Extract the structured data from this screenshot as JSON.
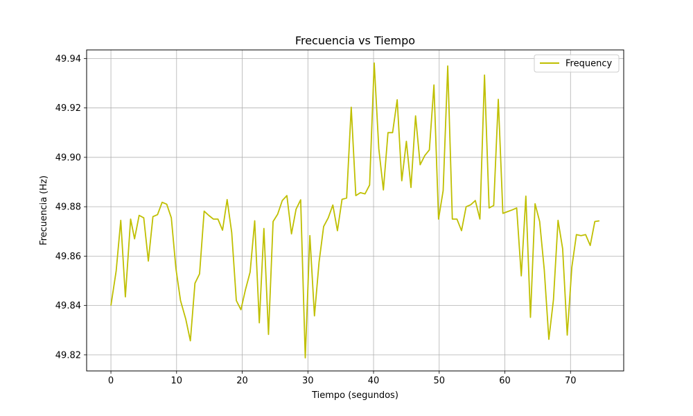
{
  "chart_data": {
    "type": "line",
    "title": "Frecuencia vs Tiempo",
    "xlabel": "Tiempo (segundos)",
    "ylabel": "Frecuencia (Hz)",
    "xlim": [
      -3.7,
      78.1
    ],
    "ylim": [
      49.8135,
      49.9435
    ],
    "xticks": [
      0,
      10,
      20,
      30,
      40,
      50,
      60,
      70
    ],
    "yticks": [
      49.82,
      49.84,
      49.86,
      49.88,
      49.9,
      49.92,
      49.94
    ],
    "ytick_labels": [
      "49.82",
      "49.84",
      "49.86",
      "49.88",
      "49.90",
      "49.92",
      "49.94"
    ],
    "grid": true,
    "legend_position": "top-right",
    "series": [
      {
        "name": "Frequency",
        "color": "#bfbf00",
        "x": [
          0.0,
          0.8,
          1.5,
          2.2,
          3.0,
          3.6,
          4.3,
          5.0,
          5.7,
          6.4,
          7.1,
          7.8,
          8.5,
          9.2,
          9.9,
          10.6,
          11.4,
          12.1,
          12.8,
          13.5,
          14.2,
          14.9,
          15.6,
          16.3,
          17.0,
          17.7,
          18.4,
          19.1,
          19.8,
          20.5,
          21.2,
          21.9,
          22.6,
          23.3,
          24.0,
          24.7,
          25.4,
          26.1,
          26.8,
          27.5,
          28.2,
          28.9,
          29.6,
          30.3,
          31.0,
          31.7,
          32.4,
          33.1,
          33.8,
          34.5,
          35.2,
          35.9,
          36.6,
          37.3,
          38.0,
          38.7,
          39.4,
          40.1,
          40.8,
          41.5,
          42.2,
          42.9,
          43.6,
          44.3,
          45.0,
          45.7,
          46.4,
          47.1,
          47.8,
          48.5,
          49.2,
          49.9,
          50.6,
          51.3,
          52.0,
          52.7,
          53.4,
          54.1,
          54.8,
          55.5,
          56.2,
          56.9,
          57.6,
          58.3,
          59.0,
          59.7,
          60.4,
          61.1,
          61.8,
          62.5,
          63.2,
          63.9,
          64.6,
          65.3,
          66.0,
          66.7,
          67.4,
          68.1,
          68.8,
          69.5,
          70.2,
          70.9,
          71.6,
          72.3,
          73.0,
          73.7,
          74.4
        ],
        "y": [
          49.84,
          49.854,
          49.8745,
          49.8435,
          49.875,
          49.867,
          49.8765,
          49.8755,
          49.858,
          49.876,
          49.8768,
          49.8818,
          49.881,
          49.8755,
          49.855,
          49.842,
          49.8345,
          49.8257,
          49.849,
          49.8528,
          49.8782,
          49.8765,
          49.875,
          49.875,
          49.8705,
          49.8829,
          49.8695,
          49.842,
          49.8383,
          49.8465,
          49.8535,
          49.8743,
          49.833,
          49.8712,
          49.8283,
          49.874,
          49.877,
          49.8825,
          49.8845,
          49.869,
          49.879,
          49.8828,
          49.8188,
          49.8683,
          49.8358,
          49.8575,
          49.872,
          49.8755,
          49.8807,
          49.8703,
          49.883,
          49.8835,
          49.9203,
          49.8845,
          49.8857,
          49.8852,
          49.8888,
          49.9382,
          49.9035,
          49.8868,
          49.91,
          49.91,
          49.9233,
          49.8905,
          49.9065,
          49.8878,
          49.9168,
          49.897,
          49.9007,
          49.903,
          49.9293,
          49.875,
          49.8865,
          49.937,
          49.875,
          49.875,
          49.8703,
          49.88,
          49.8808,
          49.8825,
          49.875,
          49.9333,
          49.8795,
          49.8805,
          49.9235,
          49.8773,
          49.878,
          49.8787,
          49.8795,
          49.852,
          49.8843,
          49.8352,
          49.8812,
          49.874,
          49.8545,
          49.8263,
          49.8423,
          49.8745,
          49.863,
          49.828,
          49.8555,
          49.8687,
          49.8683,
          49.8687,
          49.8643,
          49.874,
          49.8743
        ]
      }
    ]
  }
}
